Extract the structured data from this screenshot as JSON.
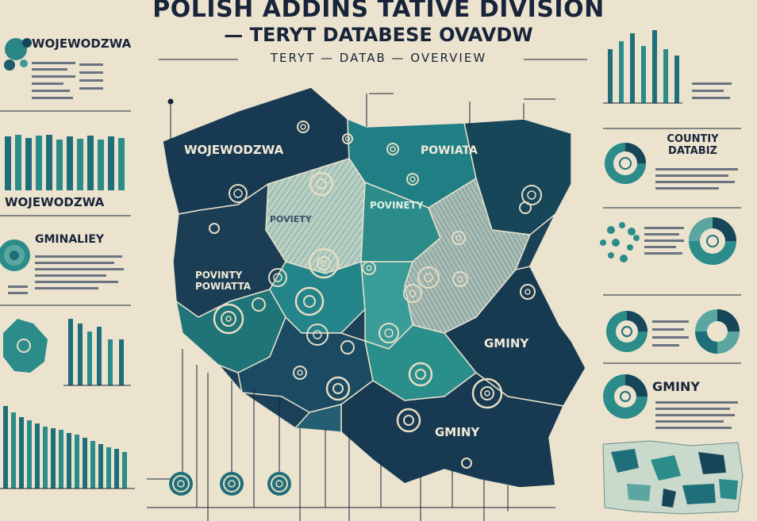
{
  "title": {
    "line1": "POLISH ADDINS TATIVE DIVISION",
    "line2": "— TERYT DATABESE OVAVDW",
    "line3": "TERYT — DATAB — OVERVIEW"
  },
  "map_labels": {
    "wojewodzwa": "WOJEWODZWA",
    "powiata": "POWIATA",
    "povinety": "POVINETY",
    "powiata_center": "POVINTY POWIATTA",
    "powiata_center2": "POVIETY",
    "gminy_right": "GMINY",
    "gminy_bottom": "GMINY"
  },
  "left_panel": {
    "heading1": "WOJEWODZWA",
    "heading2": "WOJEWODZWA",
    "heading3": "GMINALIEY"
  },
  "right_panel": {
    "heading1": "COUNTIY DATABIZ",
    "heading2": "GMINY"
  },
  "colors": {
    "background": "#ece3cf",
    "navy": "#173a52",
    "teal": "#1f7a7a",
    "light_teal": "#5ba6a1",
    "pale": "#c9d9cc",
    "ink": "#18243a"
  }
}
